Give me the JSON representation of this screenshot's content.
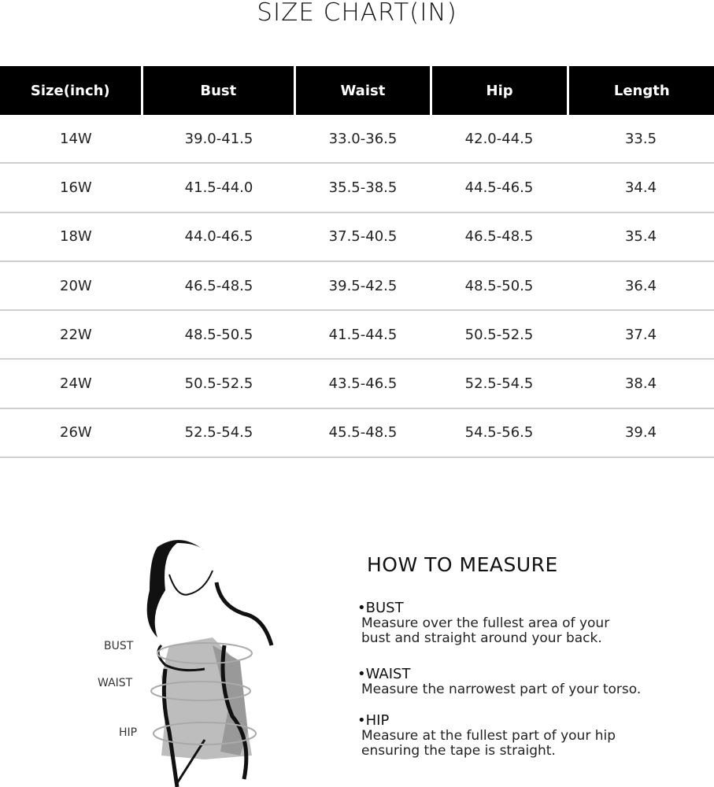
{
  "title": "SIZE CHART(IN)",
  "table": {
    "headers": [
      "Size(inch)",
      "Bust",
      "Waist",
      "Hip",
      "Length"
    ],
    "rows": [
      [
        "14W",
        "39.0-41.5",
        "33.0-36.5",
        "42.0-44.5",
        "33.5"
      ],
      [
        "16W",
        "41.5-44.0",
        "35.5-38.5",
        "44.5-46.5",
        "34.4"
      ],
      [
        "18W",
        "44.0-46.5",
        "37.5-40.5",
        "46.5-48.5",
        "35.4"
      ],
      [
        "20W",
        "46.5-48.5",
        "39.5-42.5",
        "48.5-50.5",
        "36.4"
      ],
      [
        "22W",
        "48.5-50.5",
        "41.5-44.5",
        "50.5-52.5",
        "37.4"
      ],
      [
        "24W",
        "50.5-52.5",
        "43.5-46.5",
        "52.5-54.5",
        "38.4"
      ],
      [
        "26W",
        "52.5-54.5",
        "45.5-48.5",
        "54.5-56.5",
        "39.4"
      ]
    ]
  },
  "figure": {
    "labels": {
      "bust": "BUST",
      "waist": "WAIST",
      "hip": "HIP"
    }
  },
  "how_to": {
    "title": "HOW TO MEASURE",
    "sections": [
      {
        "heading": "•BUST",
        "text": "Measure over the fullest area of your bust and straight around your back."
      },
      {
        "heading": "•WAIST",
        "text": "Measure the narrowest part of your torso."
      },
      {
        "heading": "•HIP",
        "text": "Measure at the fullest part of your hip ensuring the tape is straight."
      }
    ]
  }
}
